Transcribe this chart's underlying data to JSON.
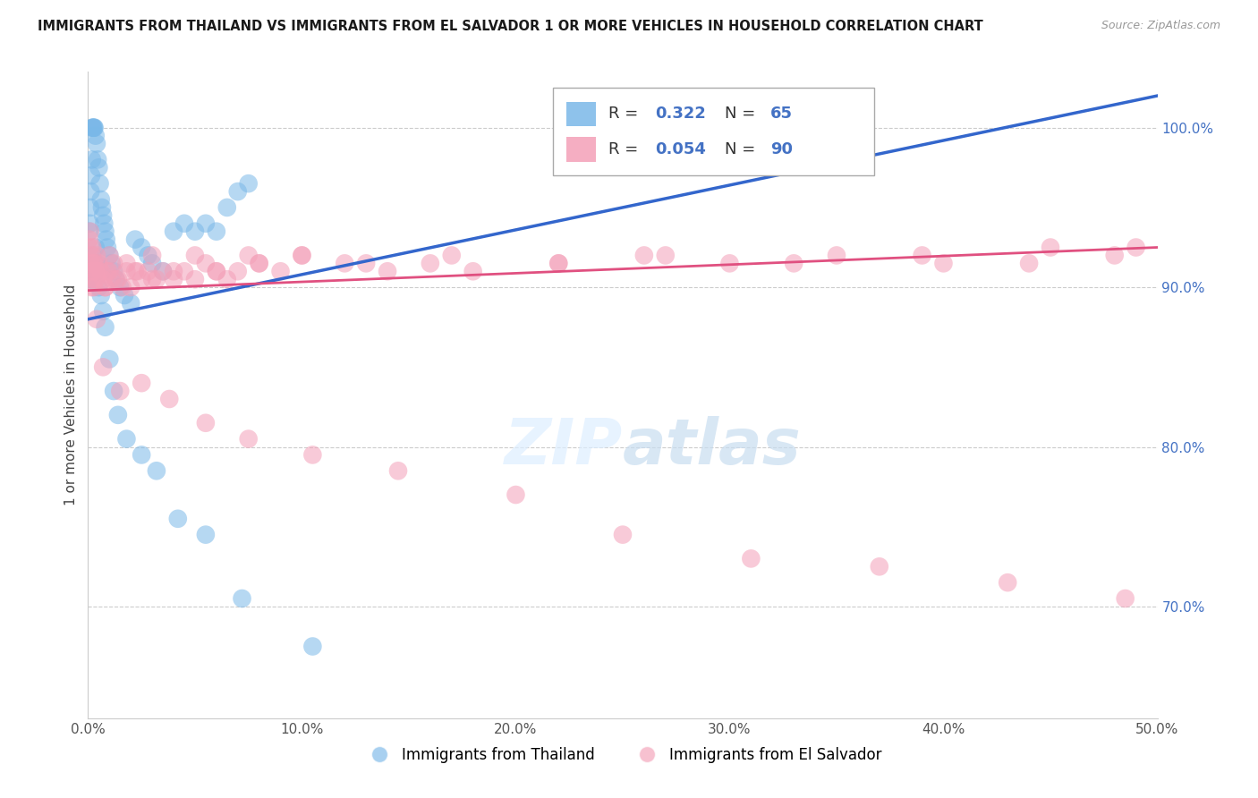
{
  "title": "IMMIGRANTS FROM THAILAND VS IMMIGRANTS FROM EL SALVADOR 1 OR MORE VEHICLES IN HOUSEHOLD CORRELATION CHART",
  "source": "Source: ZipAtlas.com",
  "ylabel": "1 or more Vehicles in Household",
  "xlim": [
    0.0,
    50.0
  ],
  "ylim": [
    63.0,
    103.5
  ],
  "xticks": [
    0.0,
    10.0,
    20.0,
    30.0,
    40.0,
    50.0
  ],
  "yticks": [
    70.0,
    80.0,
    90.0,
    100.0
  ],
  "ytick_labels": [
    "70.0%",
    "80.0%",
    "90.0%",
    "100.0%"
  ],
  "xtick_labels": [
    "0.0%",
    "10.0%",
    "20.0%",
    "30.0%",
    "40.0%",
    "50.0%"
  ],
  "thailand_color": "#7ab8e8",
  "el_salvador_color": "#f4a0b8",
  "thailand_R": 0.322,
  "thailand_N": 65,
  "el_salvador_R": 0.054,
  "el_salvador_N": 90,
  "trend_thailand_color": "#3366cc",
  "trend_el_salvador_color": "#e05080",
  "legend_label_thailand": "Immigrants from Thailand",
  "legend_label_el_salvador": "Immigrants from El Salvador",
  "thailand_x": [
    0.05,
    0.08,
    0.1,
    0.12,
    0.15,
    0.18,
    0.2,
    0.22,
    0.25,
    0.28,
    0.3,
    0.35,
    0.4,
    0.45,
    0.5,
    0.55,
    0.6,
    0.65,
    0.7,
    0.75,
    0.8,
    0.85,
    0.9,
    1.0,
    1.1,
    1.2,
    1.3,
    1.5,
    1.7,
    2.0,
    2.2,
    2.5,
    2.8,
    3.0,
    3.5,
    4.0,
    4.5,
    5.0,
    5.5,
    6.0,
    6.5,
    7.0,
    7.5,
    0.05,
    0.1,
    0.15,
    0.2,
    0.25,
    0.3,
    0.35,
    0.4,
    0.5,
    0.6,
    0.7,
    0.8,
    1.0,
    1.2,
    1.4,
    1.8,
    2.5,
    3.2,
    4.2,
    5.5,
    7.2,
    10.5
  ],
  "thailand_y": [
    93.5,
    94.0,
    95.0,
    96.0,
    97.0,
    98.0,
    100.0,
    100.0,
    100.0,
    100.0,
    100.0,
    99.5,
    99.0,
    98.0,
    97.5,
    96.5,
    95.5,
    95.0,
    94.5,
    94.0,
    93.5,
    93.0,
    92.5,
    92.0,
    91.5,
    91.0,
    90.5,
    90.0,
    89.5,
    89.0,
    93.0,
    92.5,
    92.0,
    91.5,
    91.0,
    93.5,
    94.0,
    93.5,
    94.0,
    93.5,
    95.0,
    96.0,
    96.5,
    91.0,
    90.5,
    91.5,
    92.0,
    90.5,
    91.0,
    92.5,
    91.5,
    90.0,
    89.5,
    88.5,
    87.5,
    85.5,
    83.5,
    82.0,
    80.5,
    79.5,
    78.5,
    75.5,
    74.5,
    70.5,
    67.5
  ],
  "el_salvador_x": [
    0.05,
    0.08,
    0.1,
    0.12,
    0.15,
    0.18,
    0.2,
    0.22,
    0.25,
    0.28,
    0.3,
    0.35,
    0.4,
    0.5,
    0.6,
    0.7,
    0.8,
    0.9,
    1.0,
    1.1,
    1.2,
    1.4,
    1.6,
    1.8,
    2.0,
    2.2,
    2.5,
    2.8,
    3.0,
    3.2,
    3.5,
    4.0,
    4.5,
    5.0,
    5.5,
    6.0,
    6.5,
    7.0,
    7.5,
    8.0,
    9.0,
    10.0,
    12.0,
    14.0,
    16.0,
    18.0,
    22.0,
    26.0,
    30.0,
    35.0,
    40.0,
    45.0,
    48.0,
    0.15,
    0.25,
    0.35,
    0.5,
    0.8,
    1.0,
    1.3,
    1.8,
    2.3,
    3.0,
    4.0,
    5.0,
    6.0,
    8.0,
    10.0,
    13.0,
    17.0,
    22.0,
    27.0,
    33.0,
    39.0,
    44.0,
    49.0,
    0.4,
    0.7,
    1.5,
    2.5,
    3.8,
    5.5,
    7.5,
    10.5,
    14.5,
    20.0,
    25.0,
    31.0,
    37.0,
    43.0,
    48.5
  ],
  "el_salvador_y": [
    93.0,
    92.5,
    93.5,
    91.5,
    91.0,
    92.0,
    92.5,
    91.0,
    90.5,
    90.0,
    91.5,
    91.0,
    92.0,
    91.5,
    91.0,
    90.5,
    90.0,
    91.0,
    92.0,
    90.5,
    91.5,
    90.5,
    90.0,
    91.0,
    90.0,
    91.0,
    90.5,
    91.0,
    92.0,
    90.5,
    91.0,
    90.5,
    91.0,
    92.0,
    91.5,
    91.0,
    90.5,
    91.0,
    92.0,
    91.5,
    91.0,
    92.0,
    91.5,
    91.0,
    91.5,
    91.0,
    91.5,
    92.0,
    91.5,
    92.0,
    91.5,
    92.5,
    92.0,
    90.0,
    91.5,
    90.5,
    91.0,
    90.0,
    91.0,
    90.5,
    91.5,
    91.0,
    90.5,
    91.0,
    90.5,
    91.0,
    91.5,
    92.0,
    91.5,
    92.0,
    91.5,
    92.0,
    91.5,
    92.0,
    91.5,
    92.5,
    88.0,
    85.0,
    83.5,
    84.0,
    83.0,
    81.5,
    80.5,
    79.5,
    78.5,
    77.0,
    74.5,
    73.0,
    72.5,
    71.5,
    70.5
  ]
}
